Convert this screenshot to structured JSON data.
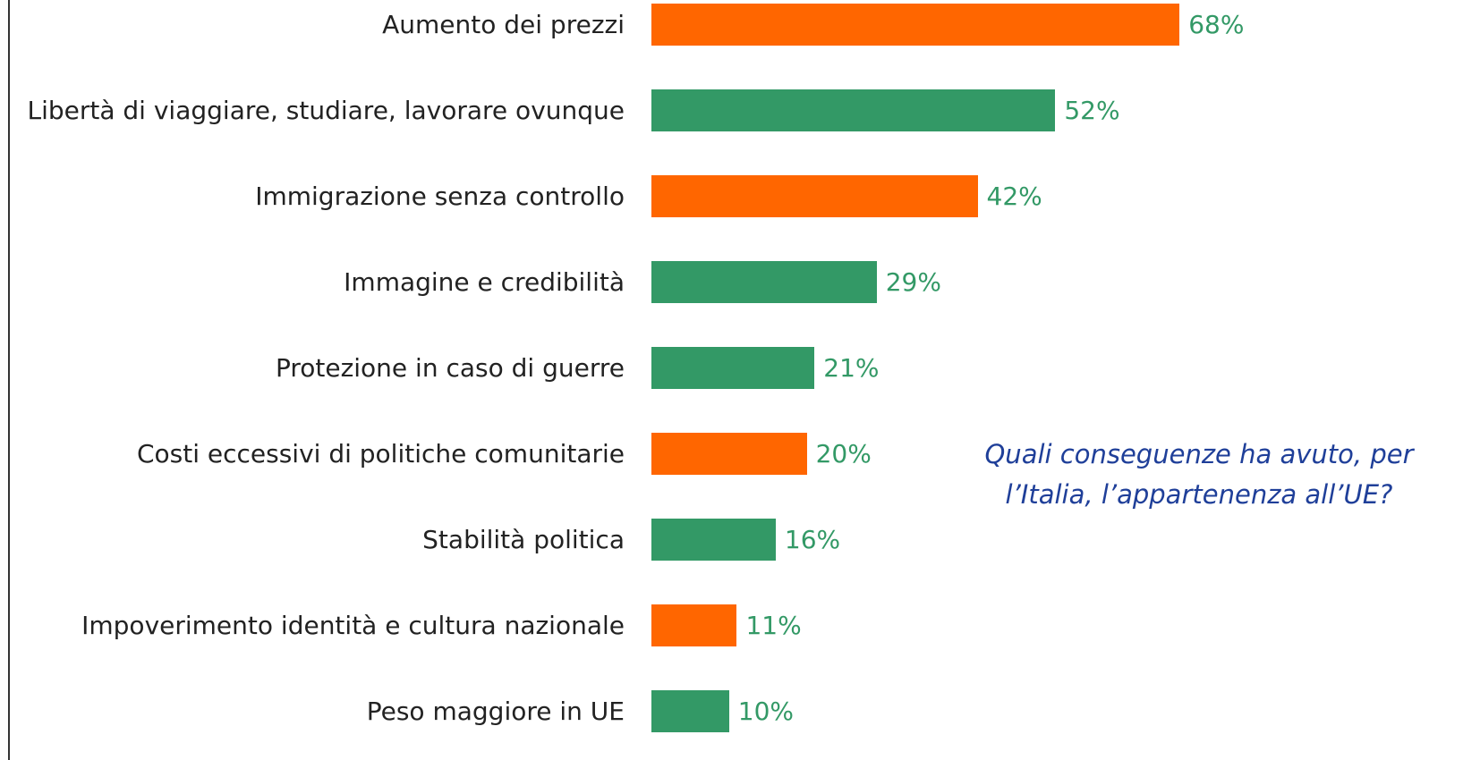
{
  "chart_data": {
    "type": "bar",
    "orientation": "horizontal",
    "categories": [
      "Aumento dei prezzi",
      "Libertà di viaggiare, studiare, lavorare ovunque",
      "Immigrazione senza controllo",
      "Immagine e credibilità",
      "Protezione in caso di guerre",
      "Costi eccessivi di politiche comunitarie",
      "Stabilità politica",
      "Impoverimento identità e cultura nazionale",
      "Peso maggiore in UE"
    ],
    "values": [
      68,
      52,
      42,
      29,
      21,
      20,
      16,
      11,
      10
    ],
    "value_labels": [
      "68%",
      "52%",
      "42%",
      "29%",
      "21%",
      "20%",
      "16%",
      "11%",
      "10%"
    ],
    "colors": [
      "#ff6600",
      "#339966",
      "#ff6600",
      "#339966",
      "#339966",
      "#ff6600",
      "#339966",
      "#ff6600",
      "#339966"
    ],
    "annotation": "Quali conseguenze ha avuto, per l’Italia, l’appartenenza all’UE?"
  }
}
